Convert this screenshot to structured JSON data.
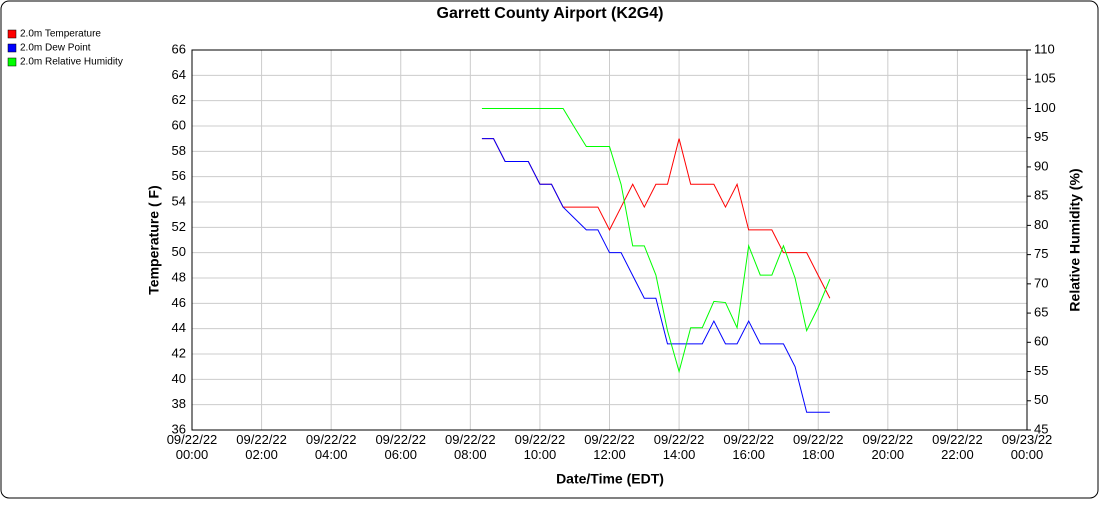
{
  "chart_data": {
    "type": "line",
    "title": "Garrett County Airport (K2G4)",
    "xlabel": "Date/Time (EDT)",
    "ylabel": "Temperature ( F)",
    "y2label": "Relative Humidity (%)",
    "x": [
      "09/22/22 08:20",
      "09/22/22 08:40",
      "09/22/22 09:00",
      "09/22/22 09:20",
      "09/22/22 09:40",
      "09/22/22 10:00",
      "09/22/22 10:20",
      "09/22/22 10:40",
      "09/22/22 11:00",
      "09/22/22 11:20",
      "09/22/22 11:40",
      "09/22/22 12:00",
      "09/22/22 12:20",
      "09/22/22 12:40",
      "09/22/22 13:00",
      "09/22/22 13:20",
      "09/22/22 13:40",
      "09/22/22 14:00",
      "09/22/22 14:20",
      "09/22/22 14:40",
      "09/22/22 15:00",
      "09/22/22 15:20",
      "09/22/22 15:40",
      "09/22/22 16:00",
      "09/22/22 16:20",
      "09/22/22 16:40",
      "09/22/22 17:00",
      "09/22/22 17:20",
      "09/22/22 17:40",
      "09/22/22 18:00",
      "09/22/22 18:20"
    ],
    "series": [
      {
        "name": "2.0m Temperature",
        "color": "#ff0000",
        "axis": "y",
        "values": [
          59,
          59,
          57.2,
          57.2,
          57.2,
          55.4,
          55.4,
          53.6,
          53.6,
          53.6,
          53.6,
          51.8,
          53.6,
          55.4,
          53.6,
          55.4,
          55.4,
          59,
          55.4,
          55.4,
          55.4,
          53.6,
          55.4,
          51.8,
          51.8,
          51.8,
          50,
          50,
          50,
          48.2,
          46.4
        ]
      },
      {
        "name": "2.0m Dew Point",
        "color": "#0000ff",
        "axis": "y",
        "values": [
          59,
          59,
          57.2,
          57.2,
          57.2,
          55.4,
          55.4,
          53.6,
          52.7,
          51.8,
          51.8,
          50,
          50,
          48.2,
          46.4,
          46.4,
          42.8,
          42.8,
          42.8,
          42.8,
          44.6,
          42.8,
          42.8,
          44.6,
          42.8,
          42.8,
          42.8,
          41,
          37.4,
          37.4,
          37.4
        ]
      },
      {
        "name": "2.0m Relative Humidity",
        "color": "#00ff00",
        "axis": "y2",
        "values": [
          100,
          100,
          100,
          100,
          100,
          100,
          100,
          100,
          96.7,
          93.5,
          93.5,
          93.5,
          87,
          76.5,
          76.5,
          71.5,
          62,
          55,
          62.5,
          62.5,
          67,
          66.8,
          62.5,
          76.5,
          71.5,
          71.5,
          76.5,
          71,
          62,
          66,
          70.8
        ]
      }
    ],
    "xlim": [
      "09/22/22 00:00",
      "09/23/22 00:00"
    ],
    "xticks": [
      "09/22/22 00:00",
      "09/22/22 02:00",
      "09/22/22 04:00",
      "09/22/22 06:00",
      "09/22/22 08:00",
      "09/22/22 10:00",
      "09/22/22 12:00",
      "09/22/22 14:00",
      "09/22/22 16:00",
      "09/22/22 18:00",
      "09/22/22 20:00",
      "09/22/22 22:00",
      "09/23/22 00:00"
    ],
    "ylim": [
      36,
      66
    ],
    "yticks": [
      36,
      38,
      40,
      42,
      44,
      46,
      48,
      50,
      52,
      54,
      56,
      58,
      60,
      62,
      64,
      66
    ],
    "y2lim": [
      45,
      110
    ],
    "y2ticks": [
      45,
      50,
      55,
      60,
      65,
      70,
      75,
      80,
      85,
      90,
      95,
      100,
      105,
      110
    ],
    "grid": true,
    "legend": "top-left"
  }
}
